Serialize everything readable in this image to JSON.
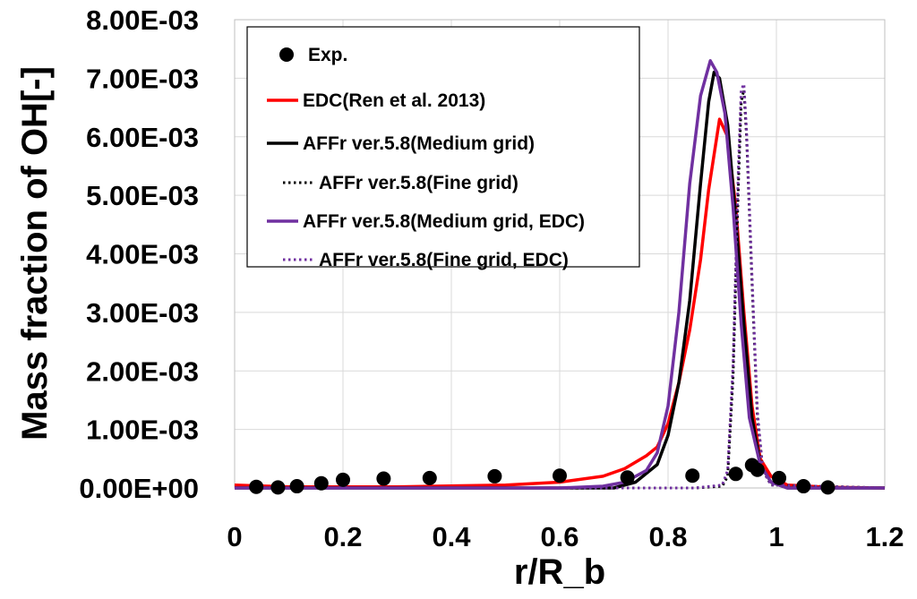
{
  "chart_data": {
    "type": "line",
    "title": "",
    "xlabel": "r/R_b",
    "ylabel": "Mass fraction of OH[-]",
    "xlim": [
      0,
      1.2
    ],
    "ylim": [
      0,
      0.008
    ],
    "x_ticks": [
      "0",
      "0.2",
      "0.4",
      "0.6",
      "0.8",
      "1",
      "1.2"
    ],
    "y_ticks": [
      "0.00E+00",
      "1.00E-03",
      "2.00E-03",
      "3.00E-03",
      "4.00E-03",
      "5.00E-03",
      "6.00E-03",
      "7.00E-03",
      "8.00E-03"
    ],
    "grid": true,
    "legend_position": "top-left",
    "series": [
      {
        "name": "Exp.",
        "kind": "scatter",
        "color": "#000000",
        "points": [
          [
            0.04,
            2e-05
          ],
          [
            0.08,
            1e-05
          ],
          [
            0.115,
            3e-05
          ],
          [
            0.16,
            8e-05
          ],
          [
            0.2,
            0.00014
          ],
          [
            0.275,
            0.00016
          ],
          [
            0.36,
            0.00017
          ],
          [
            0.48,
            0.0002
          ],
          [
            0.6,
            0.00021
          ],
          [
            0.725,
            0.00018
          ],
          [
            0.845,
            0.00021
          ],
          [
            0.925,
            0.00024
          ],
          [
            0.955,
            0.00039
          ],
          [
            0.965,
            0.00031
          ],
          [
            1.005,
            0.00017
          ],
          [
            1.05,
            3e-05
          ],
          [
            1.095,
            1e-05
          ]
        ]
      },
      {
        "name": "EDC(Ren et al. 2013)",
        "kind": "line",
        "color": "#ff0000",
        "dash": "solid",
        "points": [
          [
            0,
            5e-05
          ],
          [
            0.1,
            2e-05
          ],
          [
            0.3,
            2e-05
          ],
          [
            0.5,
            5e-05
          ],
          [
            0.6,
            0.0001
          ],
          [
            0.68,
            0.0002
          ],
          [
            0.72,
            0.00033
          ],
          [
            0.76,
            0.00055
          ],
          [
            0.78,
            0.0007
          ],
          [
            0.8,
            0.0011
          ],
          [
            0.82,
            0.0018
          ],
          [
            0.84,
            0.0027
          ],
          [
            0.86,
            0.0039
          ],
          [
            0.875,
            0.0051
          ],
          [
            0.895,
            0.0063
          ],
          [
            0.91,
            0.006
          ],
          [
            0.925,
            0.0048
          ],
          [
            0.94,
            0.003
          ],
          [
            0.955,
            0.0014
          ],
          [
            0.97,
            0.0005
          ],
          [
            0.99,
            0.0002
          ],
          [
            1.02,
            5e-05
          ],
          [
            1.1,
            1e-05
          ],
          [
            1.2,
            0.0
          ]
        ]
      },
      {
        "name": "AFFr ver.5.8(Medium grid)",
        "kind": "line",
        "color": "#000000",
        "dash": "solid",
        "points": [
          [
            0,
            0.0
          ],
          [
            0.6,
            0.0
          ],
          [
            0.7,
            0.0
          ],
          [
            0.74,
            0.0001
          ],
          [
            0.78,
            0.0004
          ],
          [
            0.8,
            0.0009
          ],
          [
            0.82,
            0.0018
          ],
          [
            0.84,
            0.0032
          ],
          [
            0.86,
            0.0052
          ],
          [
            0.875,
            0.0066
          ],
          [
            0.885,
            0.0071
          ],
          [
            0.895,
            0.007
          ],
          [
            0.91,
            0.0062
          ],
          [
            0.925,
            0.0046
          ],
          [
            0.94,
            0.0028
          ],
          [
            0.955,
            0.0012
          ],
          [
            0.97,
            0.0004
          ],
          [
            0.99,
            0.0001
          ],
          [
            1.02,
            0.0
          ],
          [
            1.2,
            0.0
          ]
        ]
      },
      {
        "name": "AFFr ver.5.8(Fine grid)",
        "kind": "line",
        "color": "#000000",
        "dash": "dotted",
        "points": [
          [
            0,
            0.0
          ],
          [
            0.85,
            0.0
          ],
          [
            0.9,
            3e-05
          ],
          [
            0.91,
            0.0002
          ],
          [
            0.92,
            0.0019
          ],
          [
            0.93,
            0.0052
          ],
          [
            0.935,
            0.0066
          ],
          [
            0.94,
            0.0068
          ],
          [
            0.945,
            0.006
          ],
          [
            0.955,
            0.0035
          ],
          [
            0.965,
            0.0012
          ],
          [
            0.975,
            0.0003
          ],
          [
            0.99,
            5e-05
          ],
          [
            1.2,
            0.0
          ]
        ]
      },
      {
        "name": "AFFr ver.5.8(Medium grid, EDC)",
        "kind": "line",
        "color": "#7030a0",
        "dash": "solid",
        "points": [
          [
            0,
            0.0
          ],
          [
            0.6,
            0.0
          ],
          [
            0.68,
            3e-05
          ],
          [
            0.72,
            0.0001
          ],
          [
            0.76,
            0.0003
          ],
          [
            0.78,
            0.0006
          ],
          [
            0.8,
            0.0014
          ],
          [
            0.82,
            0.003
          ],
          [
            0.84,
            0.0052
          ],
          [
            0.86,
            0.0067
          ],
          [
            0.878,
            0.0073
          ],
          [
            0.89,
            0.0071
          ],
          [
            0.905,
            0.0064
          ],
          [
            0.92,
            0.0048
          ],
          [
            0.935,
            0.0028
          ],
          [
            0.95,
            0.0012
          ],
          [
            0.97,
            0.0004
          ],
          [
            0.99,
            0.0001
          ],
          [
            1.02,
            0.0
          ],
          [
            1.2,
            0.0
          ]
        ]
      },
      {
        "name": "AFFr ver.5.8(Fine grid, EDC)",
        "kind": "line",
        "color": "#7030a0",
        "dash": "dotted",
        "points": [
          [
            0,
            0.0
          ],
          [
            0.85,
            0.0
          ],
          [
            0.9,
            5e-05
          ],
          [
            0.91,
            0.0003
          ],
          [
            0.92,
            0.0021
          ],
          [
            0.93,
            0.0055
          ],
          [
            0.935,
            0.0068
          ],
          [
            0.94,
            0.0069
          ],
          [
            0.945,
            0.0061
          ],
          [
            0.955,
            0.0036
          ],
          [
            0.965,
            0.0013
          ],
          [
            0.975,
            0.0003
          ],
          [
            0.99,
            5e-05
          ],
          [
            1.2,
            0.0
          ]
        ]
      }
    ]
  }
}
